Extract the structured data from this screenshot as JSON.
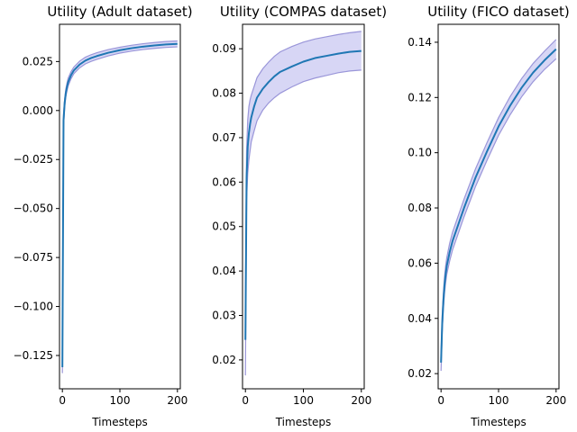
{
  "chart_data": [
    {
      "type": "line",
      "title": "Utility (Adult dataset)",
      "xlabel": "Timesteps",
      "ylabel": "",
      "xlim": [
        -5,
        205
      ],
      "ylim": [
        -0.142,
        0.044
      ],
      "xticks": [
        0,
        100,
        200
      ],
      "yticks": [
        -0.125,
        -0.1,
        -0.075,
        -0.05,
        -0.025,
        0.0,
        0.025
      ],
      "ytick_labels": [
        "−0.125",
        "−0.100",
        "−0.075",
        "−0.050",
        "−0.025",
        "0.000",
        "0.025"
      ],
      "series": [
        {
          "x": [
            0,
            2,
            4,
            6,
            8,
            10,
            15,
            20,
            30,
            40,
            50,
            60,
            80,
            100,
            120,
            140,
            160,
            180,
            200
          ],
          "mean": [
            -0.131,
            -0.005,
            0.004,
            0.009,
            0.012,
            0.0145,
            0.018,
            0.0205,
            0.0235,
            0.0255,
            0.0268,
            0.0278,
            0.0295,
            0.0308,
            0.0318,
            0.0326,
            0.0332,
            0.0337,
            0.034
          ],
          "upper": [
            -0.128,
            -0.002,
            0.006,
            0.011,
            0.014,
            0.0165,
            0.0198,
            0.0222,
            0.0252,
            0.0272,
            0.0285,
            0.0295,
            0.0311,
            0.0323,
            0.0333,
            0.0341,
            0.0347,
            0.0352,
            0.0355
          ],
          "lower": [
            -0.134,
            -0.008,
            0.002,
            0.007,
            0.01,
            0.0125,
            0.0162,
            0.0188,
            0.0218,
            0.0238,
            0.0251,
            0.0261,
            0.0279,
            0.0293,
            0.0303,
            0.0311,
            0.0317,
            0.0322,
            0.0325
          ]
        }
      ]
    },
    {
      "type": "line",
      "title": "Utility (COMPAS dataset)",
      "xlabel": "Timesteps",
      "ylabel": "",
      "xlim": [
        -5,
        205
      ],
      "ylim": [
        0.0135,
        0.0955
      ],
      "xticks": [
        0,
        100,
        200
      ],
      "yticks": [
        0.02,
        0.03,
        0.04,
        0.05,
        0.06,
        0.07,
        0.08,
        0.09
      ],
      "ytick_labels": [
        "0.02",
        "0.03",
        "0.04",
        "0.05",
        "0.06",
        "0.07",
        "0.08",
        "0.09"
      ],
      "series": [
        {
          "x": [
            0,
            2,
            4,
            6,
            8,
            10,
            15,
            20,
            30,
            40,
            50,
            60,
            80,
            100,
            120,
            140,
            160,
            180,
            200
          ],
          "mean": [
            0.0245,
            0.061,
            0.068,
            0.071,
            0.073,
            0.0745,
            0.077,
            0.079,
            0.081,
            0.0825,
            0.0838,
            0.0848,
            0.086,
            0.0871,
            0.0879,
            0.0884,
            0.0889,
            0.0893,
            0.0895
          ],
          "upper": [
            0.033,
            0.067,
            0.074,
            0.077,
            0.0785,
            0.0795,
            0.0815,
            0.0835,
            0.0855,
            0.087,
            0.0883,
            0.0893,
            0.0905,
            0.0915,
            0.0922,
            0.0927,
            0.0932,
            0.0936,
            0.0939
          ],
          "lower": [
            0.0165,
            0.056,
            0.062,
            0.065,
            0.067,
            0.069,
            0.0715,
            0.0738,
            0.0762,
            0.0778,
            0.079,
            0.08,
            0.0814,
            0.0826,
            0.0834,
            0.084,
            0.0846,
            0.085,
            0.0852
          ]
        }
      ]
    },
    {
      "type": "line",
      "title": "Utility (FICO dataset)",
      "xlabel": "Timesteps",
      "ylabel": "",
      "xlim": [
        -5,
        205
      ],
      "ylim": [
        0.0145,
        0.1465
      ],
      "xticks": [
        0,
        100,
        200
      ],
      "yticks": [
        0.02,
        0.04,
        0.06,
        0.08,
        0.1,
        0.12,
        0.14
      ],
      "ytick_labels": [
        "0.02",
        "0.04",
        "0.06",
        "0.08",
        "0.10",
        "0.12",
        "0.14"
      ],
      "series": [
        {
          "x": [
            0,
            2,
            4,
            6,
            8,
            10,
            15,
            20,
            30,
            40,
            50,
            60,
            80,
            100,
            120,
            140,
            160,
            180,
            200
          ],
          "mean": [
            0.024,
            0.038,
            0.046,
            0.052,
            0.056,
            0.059,
            0.064,
            0.068,
            0.074,
            0.08,
            0.0855,
            0.091,
            0.1005,
            0.1095,
            0.117,
            0.1235,
            0.129,
            0.1335,
            0.1375
          ],
          "upper": [
            0.027,
            0.041,
            0.049,
            0.055,
            0.059,
            0.062,
            0.0672,
            0.0712,
            0.0772,
            0.0832,
            0.0887,
            0.0942,
            0.1037,
            0.1127,
            0.1203,
            0.1268,
            0.1323,
            0.1368,
            0.141
          ],
          "lower": [
            0.021,
            0.035,
            0.043,
            0.049,
            0.053,
            0.056,
            0.0608,
            0.0648,
            0.0708,
            0.0768,
            0.0823,
            0.0878,
            0.0973,
            0.1063,
            0.1137,
            0.1202,
            0.1257,
            0.1302,
            0.134
          ]
        }
      ]
    }
  ],
  "colors": {
    "mean_line": "#1f77b4",
    "band_fill": "#c9c8f2",
    "band_edge": "#9a96d9"
  }
}
